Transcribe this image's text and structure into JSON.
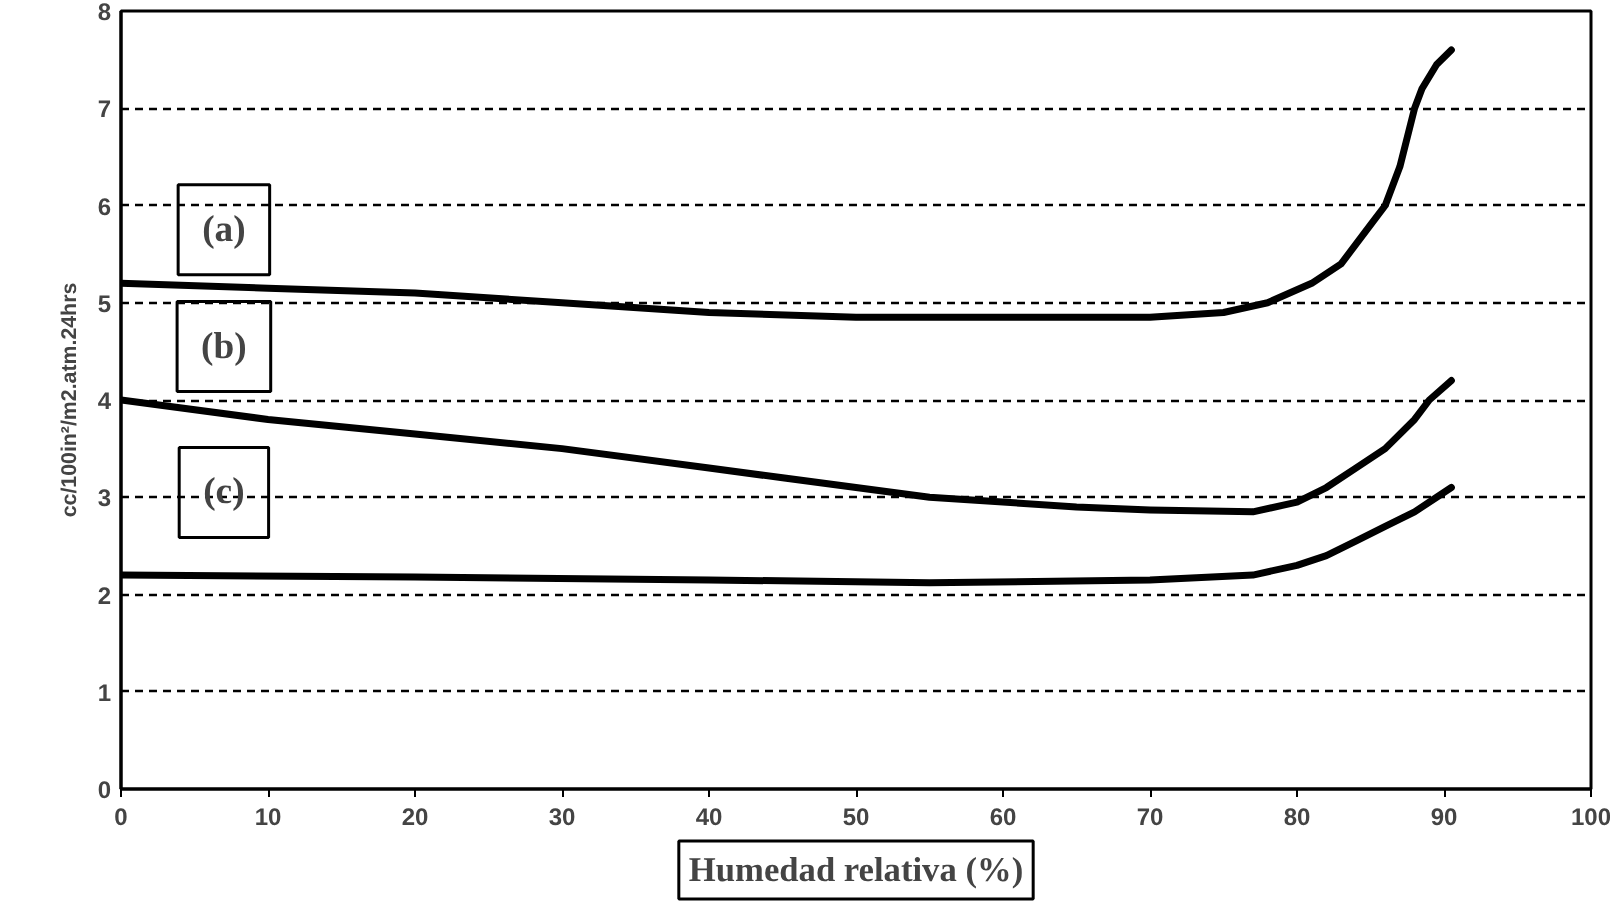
{
  "chart_data": {
    "type": "line",
    "xlabel": "Humedad relativa (%)",
    "ylabel": "cc/100in²/m2.atm.24hrs",
    "xlim": [
      0,
      100
    ],
    "xticks": [
      0,
      10,
      20,
      30,
      40,
      50,
      60,
      70,
      80,
      90,
      100
    ],
    "ylim": [
      0,
      8
    ],
    "yticks": [
      0,
      1,
      2,
      3,
      4,
      5,
      6,
      7,
      8
    ],
    "grid": "y",
    "series": [
      {
        "color": "#000000",
        "x": [
          0,
          10,
          20,
          30,
          40,
          50,
          60,
          70,
          75,
          78,
          81,
          83,
          85,
          86,
          87,
          88,
          88.5,
          89.5,
          90.5
        ],
        "values": [
          5.2,
          5.15,
          5.1,
          5.0,
          4.9,
          4.85,
          4.85,
          4.85,
          4.9,
          5.0,
          5.2,
          5.4,
          5.8,
          6.0,
          6.4,
          7.0,
          7.2,
          7.45,
          7.6
        ]
      },
      {
        "color": "#000000",
        "x": [
          0,
          10,
          20,
          30,
          40,
          45,
          55,
          65,
          70,
          77,
          80,
          82,
          84,
          86,
          88,
          89,
          90.5
        ],
        "values": [
          4.0,
          3.8,
          3.65,
          3.5,
          3.3,
          3.2,
          3.0,
          2.9,
          2.87,
          2.85,
          2.95,
          3.1,
          3.3,
          3.5,
          3.8,
          4.0,
          4.2
        ]
      },
      {
        "color": "#000000",
        "x": [
          0,
          20,
          40,
          55,
          70,
          77,
          80,
          82,
          84,
          86,
          88,
          89.5,
          90.5
        ],
        "values": [
          2.2,
          2.18,
          2.15,
          2.12,
          2.15,
          2.2,
          2.3,
          2.4,
          2.55,
          2.7,
          2.85,
          3.0,
          3.1
        ]
      }
    ],
    "annotations": [
      "(a)",
      "(b)",
      "(c)"
    ],
    "line_style": "solid",
    "marker": "none"
  }
}
